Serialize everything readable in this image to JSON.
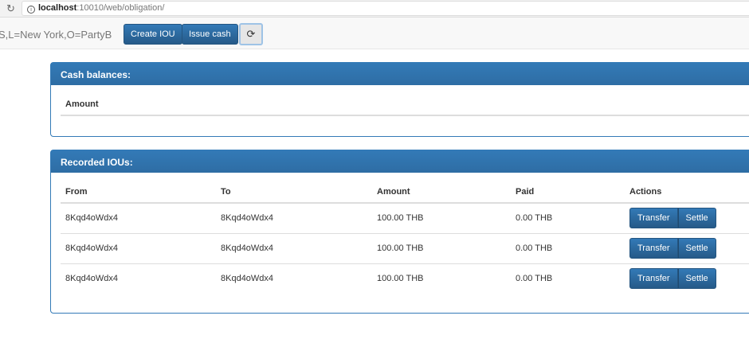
{
  "browser": {
    "url_host": "localhost",
    "url_rest": ":10010/web/obligation/"
  },
  "navbar": {
    "identity": "S,L=New York,O=PartyB",
    "create_iou": "Create IOU",
    "issue_cash": "Issue cash",
    "refresh_icon": "refresh-icon"
  },
  "cash": {
    "title": "Cash balances:",
    "columns": [
      "Amount"
    ]
  },
  "ious": {
    "title": "Recorded IOUs:",
    "columns": [
      "From",
      "To",
      "Amount",
      "Paid",
      "Actions"
    ],
    "rows": [
      {
        "from": "8Kqd4oWdx4",
        "to": "8Kqd4oWdx4",
        "amount": "100.00 THB",
        "paid": "0.00 THB",
        "transfer": "Transfer",
        "settle": "Settle"
      },
      {
        "from": "8Kqd4oWdx4",
        "to": "8Kqd4oWdx4",
        "amount": "100.00 THB",
        "paid": "0.00 THB",
        "transfer": "Transfer",
        "settle": "Settle"
      },
      {
        "from": "8Kqd4oWdx4",
        "to": "8Kqd4oWdx4",
        "amount": "100.00 THB",
        "paid": "0.00 THB",
        "transfer": "Transfer",
        "settle": "Settle"
      }
    ]
  },
  "colors": {
    "primary": "#337ab7"
  }
}
